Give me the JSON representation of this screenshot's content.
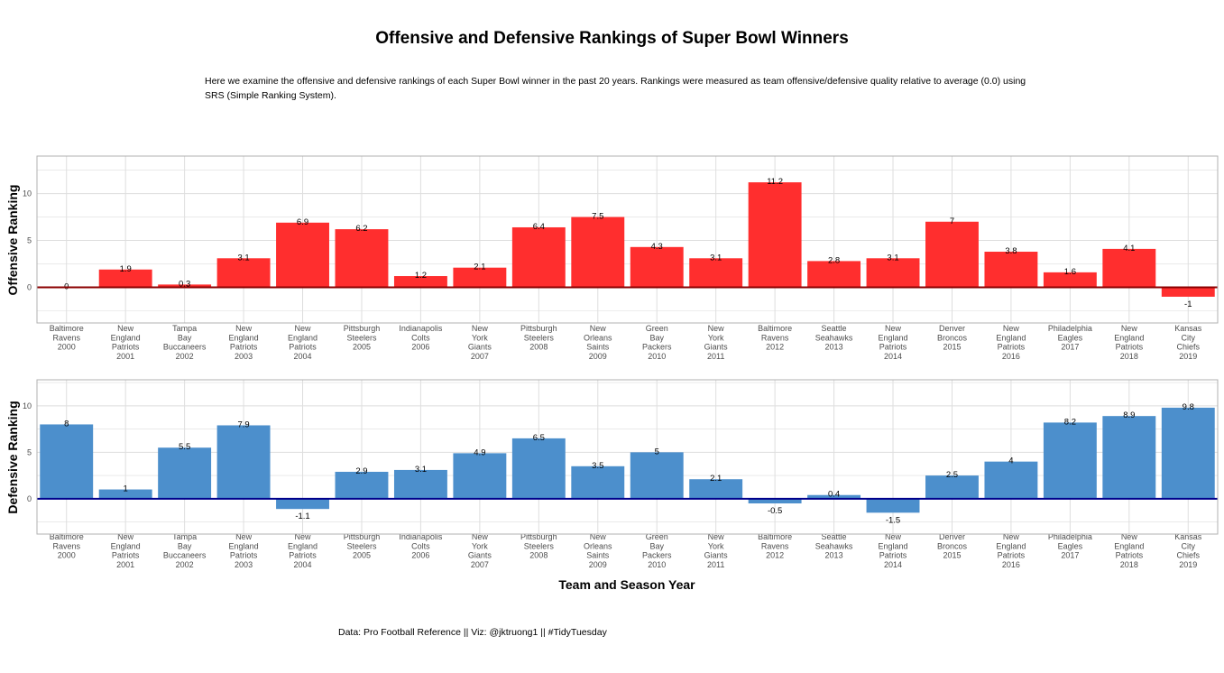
{
  "title": "Offensive and Defensive Rankings of Super Bowl Winners",
  "subtitle": "Here we examine the offensive and defensive rankings of each Super Bowl winner in the past 20 years. Rankings were measured as team offensive/defensive quality relative to average (0.0) using SRS (Simple Ranking System).",
  "caption": "Data: Pro Football Reference || Viz: @jktruong1 || #TidyTuesday",
  "colors": {
    "offense": "#FF2E2E",
    "defense": "#4C8FCC",
    "offense_zero": "#8B0000",
    "defense_zero": "#00008B",
    "grid": "#DEDEDE",
    "panel_border": "#B0B0B0"
  },
  "chart_data": [
    {
      "type": "bar",
      "ylabel": "Offensive Ranking",
      "xlabel": "",
      "ylim": [
        -3.8,
        14
      ],
      "yticks": [
        0,
        5,
        10
      ],
      "grid": true,
      "categories": [
        [
          "Baltimore",
          "Ravens",
          "2000"
        ],
        [
          "New",
          "England",
          "Patriots",
          "2001"
        ],
        [
          "Tampa",
          "Bay",
          "Buccaneers",
          "2002"
        ],
        [
          "New",
          "England",
          "Patriots",
          "2003"
        ],
        [
          "New",
          "England",
          "Patriots",
          "2004"
        ],
        [
          "Pittsburgh",
          "Steelers",
          "2005"
        ],
        [
          "Indianapolis",
          "Colts",
          "2006"
        ],
        [
          "New",
          "York",
          "Giants",
          "2007"
        ],
        [
          "Pittsburgh",
          "Steelers",
          "2008"
        ],
        [
          "New",
          "Orleans",
          "Saints",
          "2009"
        ],
        [
          "Green",
          "Bay",
          "Packers",
          "2010"
        ],
        [
          "New",
          "York",
          "Giants",
          "2011"
        ],
        [
          "Baltimore",
          "Ravens",
          "2012"
        ],
        [
          "Seattle",
          "Seahawks",
          "2013"
        ],
        [
          "New",
          "England",
          "Patriots",
          "2014"
        ],
        [
          "Denver",
          "Broncos",
          "2015"
        ],
        [
          "New",
          "England",
          "Patriots",
          "2016"
        ],
        [
          "Philadelphia",
          "Eagles",
          "2017"
        ],
        [
          "New",
          "England",
          "Patriots",
          "2018"
        ],
        [
          "Kansas",
          "City",
          "Chiefs",
          "2019"
        ]
      ],
      "values": [
        0,
        1.9,
        0.3,
        3.1,
        6.9,
        6.2,
        1.2,
        2.1,
        6.4,
        7.5,
        4.3,
        3.1,
        11.2,
        2.8,
        3.1,
        7,
        3.8,
        1.6,
        4.1,
        -1
      ]
    },
    {
      "type": "bar",
      "ylabel": "Defensive Ranking",
      "xlabel": "Team and Season Year",
      "ylim": [
        -3.8,
        12.8
      ],
      "yticks": [
        0,
        5,
        10
      ],
      "grid": true,
      "categories": [
        [
          "Baltimore",
          "Ravens",
          "2000"
        ],
        [
          "New",
          "England",
          "Patriots",
          "2001"
        ],
        [
          "Tampa",
          "Bay",
          "Buccaneers",
          "2002"
        ],
        [
          "New",
          "England",
          "Patriots",
          "2003"
        ],
        [
          "New",
          "England",
          "Patriots",
          "2004"
        ],
        [
          "Pittsburgh",
          "Steelers",
          "2005"
        ],
        [
          "Indianapolis",
          "Colts",
          "2006"
        ],
        [
          "New",
          "York",
          "Giants",
          "2007"
        ],
        [
          "Pittsburgh",
          "Steelers",
          "2008"
        ],
        [
          "New",
          "Orleans",
          "Saints",
          "2009"
        ],
        [
          "Green",
          "Bay",
          "Packers",
          "2010"
        ],
        [
          "New",
          "York",
          "Giants",
          "2011"
        ],
        [
          "Baltimore",
          "Ravens",
          "2012"
        ],
        [
          "Seattle",
          "Seahawks",
          "2013"
        ],
        [
          "New",
          "England",
          "Patriots",
          "2014"
        ],
        [
          "Denver",
          "Broncos",
          "2015"
        ],
        [
          "New",
          "England",
          "Patriots",
          "2016"
        ],
        [
          "Philadelphia",
          "Eagles",
          "2017"
        ],
        [
          "New",
          "England",
          "Patriots",
          "2018"
        ],
        [
          "Kansas",
          "City",
          "Chiefs",
          "2019"
        ]
      ],
      "values": [
        8,
        1,
        5.5,
        7.9,
        -1.1,
        2.9,
        3.1,
        4.9,
        6.5,
        3.5,
        5,
        2.1,
        -0.5,
        0.4,
        -1.5,
        2.5,
        4,
        8.2,
        8.9,
        9.8
      ]
    }
  ]
}
